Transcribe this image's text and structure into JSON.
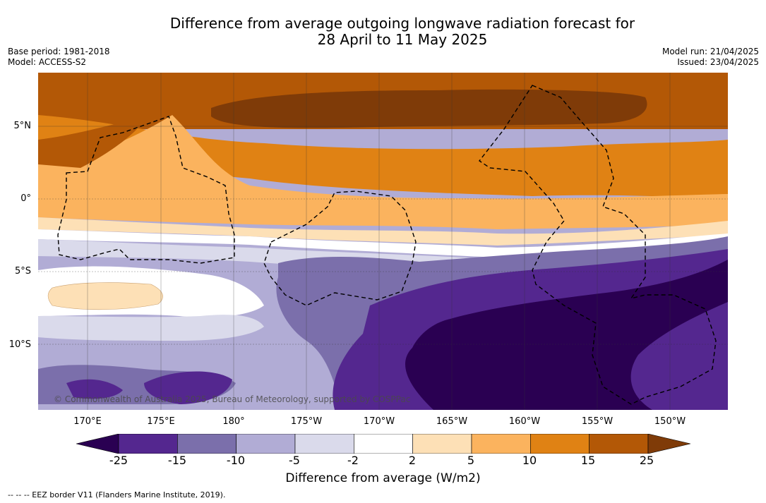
{
  "title": {
    "line1": "Difference from average outgoing longwave radiation forecast for",
    "line2": "28 April to 11 May 2025"
  },
  "meta": {
    "base_period": "Base period: 1981-2018",
    "model": "Model: ACCESS-S2",
    "model_run": "Model run: 21/04/2025",
    "issued": "Issued: 23/04/2025"
  },
  "map": {
    "lat_labels": [
      "5°N",
      "0°",
      "5°S",
      "10°S"
    ],
    "lon_labels": [
      "170°E",
      "175°E",
      "180°",
      "175°W",
      "170°W",
      "165°W",
      "160°W",
      "155°W",
      "150°W"
    ],
    "copyright": "© Commonwealth of Australia 2025, Bureau of Meteorology, supported by COSPPac"
  },
  "colorbar": {
    "ticks": [
      "-25",
      "-15",
      "-10",
      "-5",
      "-2",
      "2",
      "5",
      "10",
      "15",
      "25"
    ],
    "colors": [
      "#2a0052",
      "#54278f",
      "#7b6fab",
      "#b1acd5",
      "#dadaeb",
      "#ffffff",
      "#fde0b6",
      "#fbb35e",
      "#e08214",
      "#b35806",
      "#7f3b08"
    ],
    "label": "Difference from average (W/m2)"
  },
  "footnote": "--  --  -- EEZ border V11 (Flanders Marine Institute, 2019).",
  "legend_colors": {
    "strong_negative": "#2a0052",
    "strong_positive": "#7f3b08"
  }
}
